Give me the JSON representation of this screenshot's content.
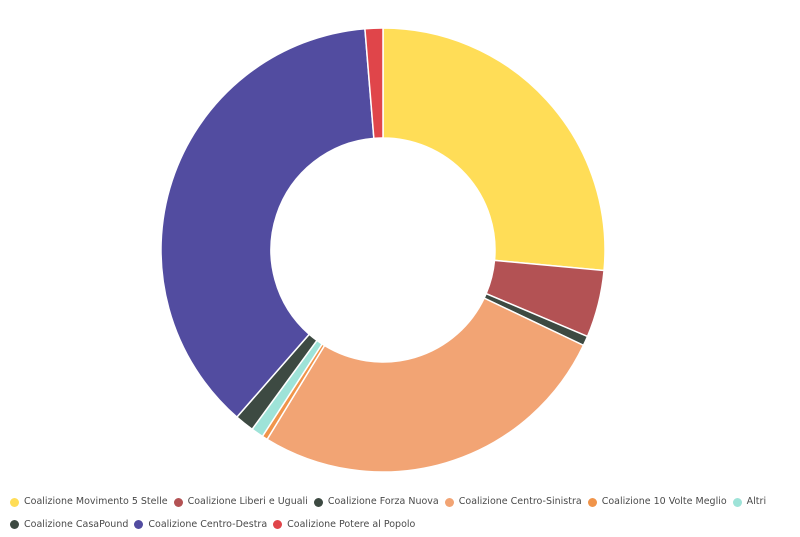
{
  "chart_data": {
    "type": "pie",
    "variant": "donut",
    "title": "",
    "legend_position": "bottom",
    "series": [
      {
        "name": "Coalizione Movimento 5 Stelle",
        "value": 26.5,
        "color": "#FFDD57"
      },
      {
        "name": "Coalizione Liberi e Uguali",
        "value": 4.9,
        "color": "#B35254"
      },
      {
        "name": "Coalizione Forza Nuova",
        "value": 0.7,
        "color": "#3D4A42"
      },
      {
        "name": "Coalizione Centro-Sinistra",
        "value": 26.7,
        "color": "#F2A474"
      },
      {
        "name": "Coalizione 10 Volte Meglio",
        "value": 0.4,
        "color": "#F0944A"
      },
      {
        "name": "Altri",
        "value": 0.9,
        "color": "#9EE3D8"
      },
      {
        "name": "Coalizione CasaPound",
        "value": 1.4,
        "color": "#3D4A42"
      },
      {
        "name": "Coalizione Centro-Destra",
        "value": 37.3,
        "color": "#524CA0"
      },
      {
        "name": "Coalizione Potere al Popolo",
        "value": 1.3,
        "color": "#E0454A"
      }
    ]
  }
}
